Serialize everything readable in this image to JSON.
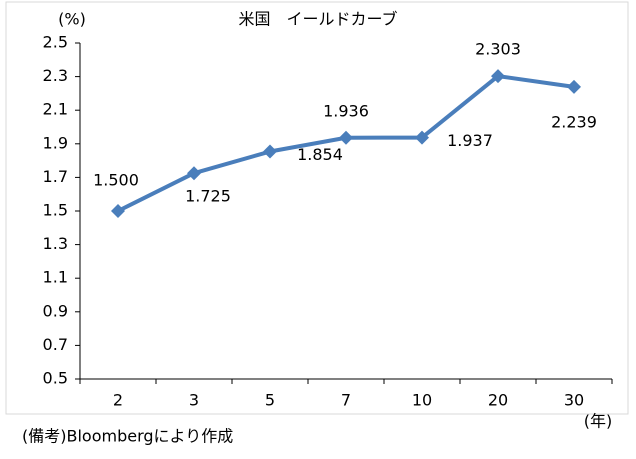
{
  "chart_data": {
    "type": "line",
    "title": "米国　イールドカーブ",
    "y_label": "(%)",
    "x_label": "(年)",
    "note": "(備考)Bloombergにより作成",
    "categories": [
      "2",
      "3",
      "5",
      "7",
      "10",
      "20",
      "30"
    ],
    "values": [
      1.5,
      1.725,
      1.854,
      1.936,
      1.937,
      2.303,
      2.239
    ],
    "value_labels": [
      "1.500",
      "1.725",
      "1.854",
      "1.936",
      "1.937",
      "2.303",
      "2.239"
    ],
    "color": "#4a7ebb",
    "ylim": [
      0.5,
      2.5
    ],
    "yticks": [
      0.5,
      0.7,
      0.9,
      1.1,
      1.3,
      1.5,
      1.7,
      1.9,
      2.1,
      2.3,
      2.5
    ],
    "grid": false
  }
}
